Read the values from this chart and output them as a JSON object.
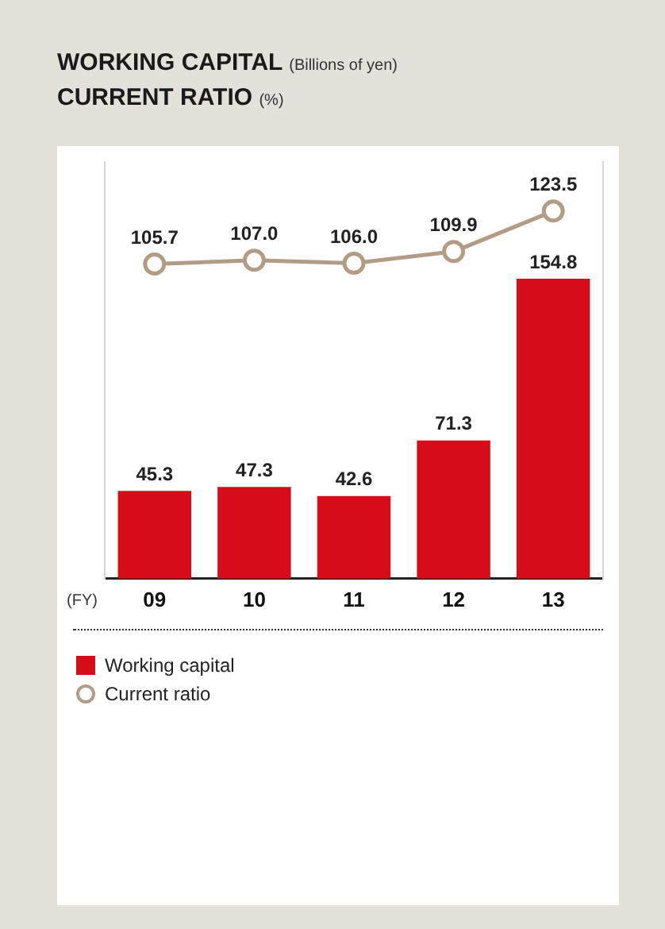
{
  "chart_data": {
    "type": "bar",
    "title": "WORKING CAPITAL",
    "subtitle": "CURRENT RATIO",
    "annotations": [
      "(Billions of yen)",
      "(%)"
    ],
    "xlabel": "(FY)",
    "categories": [
      "09",
      "10",
      "11",
      "12",
      "13"
    ],
    "series": [
      {
        "name": "Working capital",
        "type": "bar",
        "color": "#d70c19",
        "values": [
          45.3,
          47.3,
          42.6,
          71.3,
          154.8
        ],
        "value_labels": [
          "45.3",
          "47.3",
          "42.6",
          "71.3",
          "154.8"
        ]
      },
      {
        "name": "Current ratio",
        "type": "line",
        "axis": "y2",
        "color": "#b39c85",
        "marker": "circle",
        "values": [
          105.7,
          107.0,
          106.0,
          109.9,
          123.5
        ],
        "value_labels": [
          "105.7",
          "107.0",
          "106.0",
          "109.9",
          "123.5"
        ]
      }
    ],
    "ylim": [
      0,
      215
    ],
    "y2lim": [
      0,
      140
    ],
    "tick_labels": "x",
    "legend": "bottom",
    "grid": false
  }
}
